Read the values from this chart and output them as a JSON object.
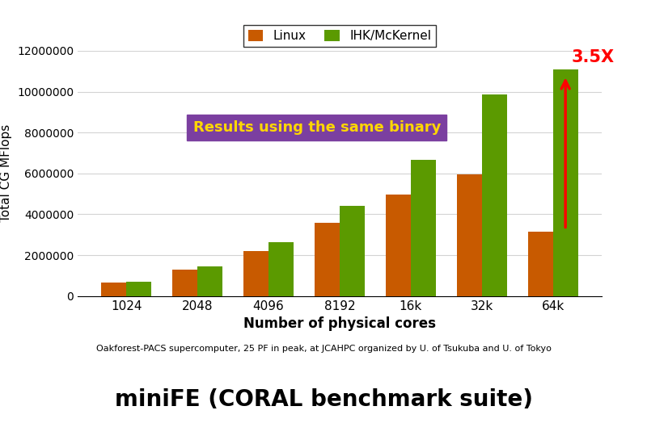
{
  "categories": [
    "1024",
    "2048",
    "4096",
    "8192",
    "16k",
    "32k",
    "64k"
  ],
  "linux_values": [
    650000,
    1280000,
    2200000,
    3600000,
    4950000,
    5950000,
    3150000
  ],
  "ihk_values": [
    720000,
    1450000,
    2620000,
    4420000,
    6680000,
    9850000,
    11100000
  ],
  "linux_color": "#C85A00",
  "ihk_color": "#5B9A00",
  "title": "miniFE (CORAL benchmark suite)",
  "xlabel": "Number of physical cores",
  "ylabel": "Total CG MFlops",
  "ylim": [
    0,
    12000000
  ],
  "yticks": [
    0,
    2000000,
    4000000,
    6000000,
    8000000,
    10000000,
    12000000
  ],
  "annotation_text": "Results using the same binary",
  "annotation_bg": "#7B3FA0",
  "annotation_fg": "#FFD700",
  "arrow_color": "#FF0000",
  "multiplier_text": "3.5X",
  "subtitle": "Oakforest-PACS supercomputer, 25 PF in peak, at JCAHPC organized by U. of Tsukuba and U. of Tokyo",
  "legend_linux": "Linux",
  "legend_ihk": "IHK/McKernel",
  "bar_width": 0.35
}
